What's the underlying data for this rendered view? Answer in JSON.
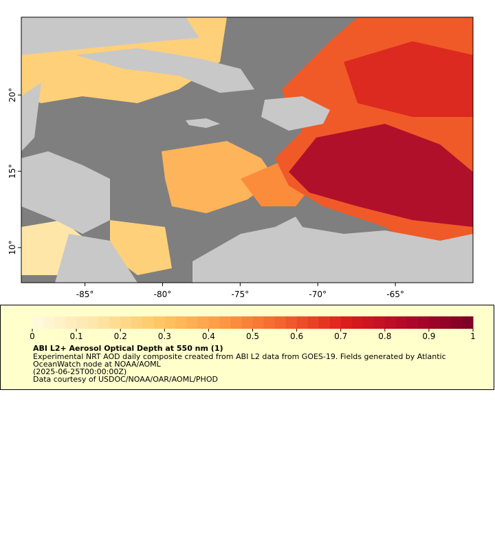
{
  "map": {
    "xlim": [
      -89.1,
      -60.0
    ],
    "ylim": [
      7.7,
      25.1
    ],
    "xticks": [
      {
        "value": -85,
        "label": "-85°"
      },
      {
        "value": -80,
        "label": "-80°"
      },
      {
        "value": -75,
        "label": "-75°"
      },
      {
        "value": -70,
        "label": "-70°"
      },
      {
        "value": -65,
        "label": "-65°"
      }
    ],
    "yticks": [
      {
        "value": 10,
        "label": "10°"
      },
      {
        "value": 15,
        "label": "15°"
      },
      {
        "value": 20,
        "label": "20°"
      }
    ]
  },
  "colorbar": {
    "vlim": [
      0,
      1
    ],
    "ticks": [
      0,
      0.1,
      0.2,
      0.3,
      0.4,
      0.5,
      0.6,
      0.7,
      0.8,
      0.9,
      1
    ],
    "colors": [
      "#fffbe0",
      "#fee6a8",
      "#fec866",
      "#fd9a44",
      "#f4602d",
      "#dc1c1c",
      "#b0062a",
      "#7a0025"
    ],
    "steps": 40
  },
  "legend": {
    "title": "ABI L2+ Aerosol Optical Depth at 550 nm (1)",
    "lines": [
      "Experimental NRT AOD daily composite created from ABI L2 data from GOES-19. Fields generated by Atlantic",
      "OceanWatch node at NOAA/AOML",
      "(2025-06-25T00:00:00Z)",
      "Data courtesy of USDOC/NOAA/OAR/AOML/PHOD"
    ]
  }
}
